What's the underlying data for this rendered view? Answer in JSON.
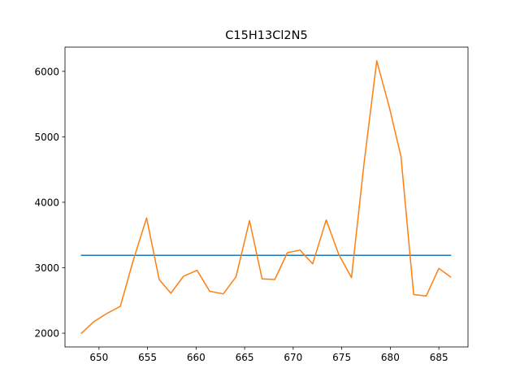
{
  "chart_data": {
    "type": "line",
    "title": "C15H13Cl2N5",
    "xlabel": "",
    "ylabel": "",
    "xlim": [
      646.5,
      688.0
    ],
    "ylim": [
      1790,
      6370
    ],
    "xticks": [
      650,
      655,
      660,
      665,
      670,
      675,
      680,
      685
    ],
    "yticks": [
      2000,
      3000,
      4000,
      5000,
      6000
    ],
    "grid": false,
    "series": [
      {
        "color": "#1f77b4",
        "x": [
          648.2,
          686.2
        ],
        "y": [
          3190,
          3190
        ]
      },
      {
        "color": "#ff7f0e",
        "x": [
          648.2,
          649.5,
          650.8,
          652.2,
          653.5,
          654.9,
          656.2,
          657.4,
          658.7,
          660.1,
          661.4,
          662.8,
          664.1,
          665.5,
          666.8,
          668.1,
          669.4,
          670.7,
          672.0,
          673.4,
          674.7,
          676.0,
          677.3,
          678.6,
          679.9,
          681.1,
          682.4,
          683.7,
          685.0,
          686.2
        ],
        "y": [
          2000,
          2180,
          2300,
          2410,
          3100,
          3760,
          2820,
          2610,
          2870,
          2960,
          2640,
          2600,
          2860,
          3720,
          2830,
          2820,
          3230,
          3270,
          3060,
          3730,
          3200,
          2850,
          4600,
          6160,
          5450,
          4700,
          2590,
          2570,
          2990,
          2860
        ]
      }
    ]
  }
}
